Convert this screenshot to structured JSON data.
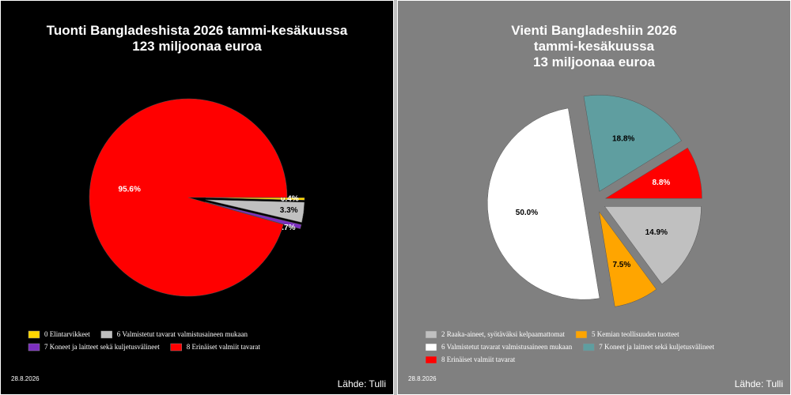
{
  "chart_data": [
    {
      "type": "pie",
      "title": [
        "Tuonti Bangladeshista  2026 tammi-kesäkuussa",
        "123 miljoonaa euroa"
      ],
      "categories": [
        "0 Elintarvikkeet",
        "6 Valmistetut tavarat valmistusaineen mukaan",
        "7 Koneet ja laitteet sekä kuljetusvälineet",
        "8 Erinäiset valmiit tavarat"
      ],
      "values": [
        0.4,
        3.3,
        0.7,
        95.6
      ],
      "value_labels": [
        "0.4%",
        "3.3%",
        "0.7%",
        "95.6%"
      ],
      "colors": [
        "#ffd700",
        "#c0c0c0",
        "#7b2fbe",
        "#ff0000"
      ],
      "background": "#000000",
      "date": "28.8.2026",
      "source": "Lähde: Tulli"
    },
    {
      "type": "pie",
      "title": [
        "Vienti Bangladeshiin 2026",
        "tammi-kesäkuussa",
        "13 miljoonaa euroa"
      ],
      "categories": [
        "2 Raaka-aineet, syötäväksi kelpaamattomat",
        "5 Kemian teollisuuden tuotteet",
        "6 Valmistetut tavarat valmistusaineen mukaan",
        "7 Koneet ja laitteet sekä kuljetusvälineet",
        "8 Erinäiset valmiit tavarat"
      ],
      "values": [
        14.9,
        7.5,
        50.0,
        18.8,
        8.8
      ],
      "value_labels": [
        "14.9%",
        "7.5%",
        "50.0%",
        "18.8%",
        "8.8%"
      ],
      "colors": [
        "#c0c0c0",
        "#ffa500",
        "#ffffff",
        "#5f9ea0",
        "#ff0000"
      ],
      "background": "#808080",
      "date": "28.8.2026",
      "source": "Lähde: Tulli"
    }
  ]
}
